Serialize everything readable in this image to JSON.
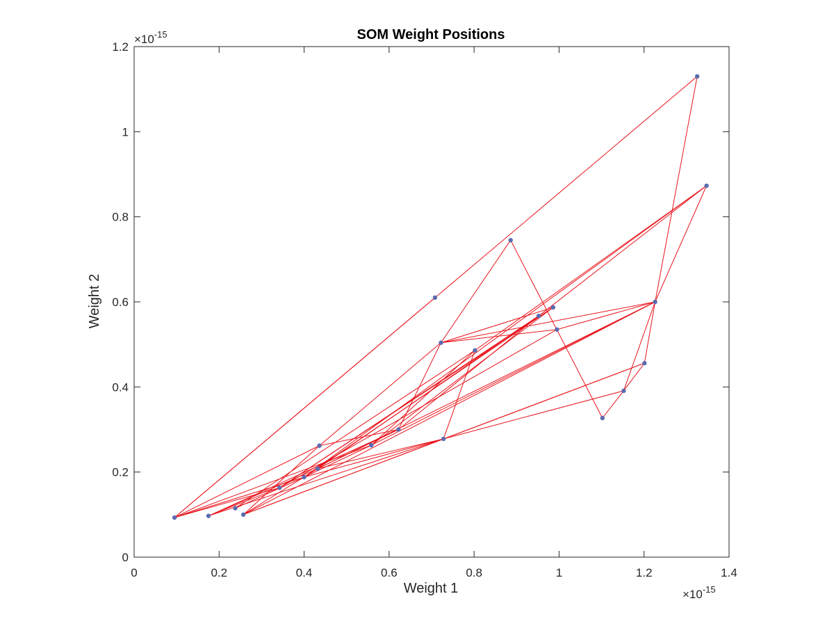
{
  "chart_data": {
    "type": "scatter",
    "title": "SOM Weight Positions",
    "xlabel": "Weight 1",
    "ylabel": "Weight 2",
    "x_exponent_label": "×10",
    "x_exponent": "-15",
    "y_exponent_label": "×10",
    "y_exponent": "-15",
    "xlim": [
      0,
      1.4
    ],
    "ylim": [
      0,
      1.2
    ],
    "xticks": [
      0,
      0.2,
      0.4,
      0.6,
      0.8,
      1,
      1.2,
      1.4
    ],
    "yticks": [
      0,
      0.2,
      0.4,
      0.6,
      0.8,
      1,
      1.2
    ],
    "xtick_labels": [
      "0",
      "0.2",
      "0.4",
      "0.6",
      "0.8",
      "1",
      "1.2",
      "1.4"
    ],
    "ytick_labels": [
      "0",
      "0.2",
      "0.4",
      "0.6",
      "0.8",
      "1",
      "1.2"
    ],
    "grid": false,
    "point_color": "#5b6bb0",
    "line_color": "#e8141c",
    "points": [
      [
        0.095,
        0.093
      ],
      [
        0.175,
        0.097
      ],
      [
        0.238,
        0.115
      ],
      [
        0.257,
        0.1
      ],
      [
        0.342,
        0.163
      ],
      [
        0.4,
        0.188
      ],
      [
        0.432,
        0.208
      ],
      [
        0.436,
        0.262
      ],
      [
        0.558,
        0.263
      ],
      [
        0.622,
        0.3
      ],
      [
        0.708,
        0.61
      ],
      [
        0.722,
        0.504
      ],
      [
        0.728,
        0.278
      ],
      [
        0.802,
        0.486
      ],
      [
        0.886,
        0.745
      ],
      [
        0.952,
        0.567
      ],
      [
        0.986,
        0.587
      ],
      [
        0.995,
        0.535
      ],
      [
        1.102,
        0.327
      ],
      [
        1.152,
        0.391
      ],
      [
        1.201,
        0.456
      ],
      [
        1.226,
        0.6
      ],
      [
        1.325,
        1.13
      ],
      [
        1.347,
        0.873
      ]
    ],
    "connections": [
      [
        0,
        10
      ],
      [
        0,
        22
      ],
      [
        0,
        4
      ],
      [
        0,
        5
      ],
      [
        0,
        8
      ],
      [
        0,
        7
      ],
      [
        1,
        9
      ],
      [
        1,
        12
      ],
      [
        1,
        4
      ],
      [
        1,
        6
      ],
      [
        2,
        5
      ],
      [
        2,
        13
      ],
      [
        3,
        7
      ],
      [
        3,
        12
      ],
      [
        3,
        21
      ],
      [
        3,
        6
      ],
      [
        3,
        20
      ],
      [
        4,
        15
      ],
      [
        4,
        17
      ],
      [
        4,
        16
      ],
      [
        5,
        16
      ],
      [
        5,
        23
      ],
      [
        5,
        12
      ],
      [
        5,
        8
      ],
      [
        6,
        15
      ],
      [
        6,
        21
      ],
      [
        6,
        12
      ],
      [
        6,
        9
      ],
      [
        7,
        9
      ],
      [
        7,
        11
      ],
      [
        8,
        13
      ],
      [
        8,
        21
      ],
      [
        8,
        16
      ],
      [
        9,
        11
      ],
      [
        9,
        15
      ],
      [
        11,
        21
      ],
      [
        11,
        14
      ],
      [
        11,
        16
      ],
      [
        11,
        17
      ],
      [
        12,
        13
      ],
      [
        12,
        20
      ],
      [
        12,
        19
      ],
      [
        13,
        23
      ],
      [
        14,
        18
      ],
      [
        15,
        23
      ],
      [
        17,
        21
      ],
      [
        18,
        19
      ],
      [
        19,
        20
      ],
      [
        19,
        21
      ],
      [
        20,
        21
      ],
      [
        21,
        22
      ],
      [
        21,
        23
      ]
    ]
  }
}
